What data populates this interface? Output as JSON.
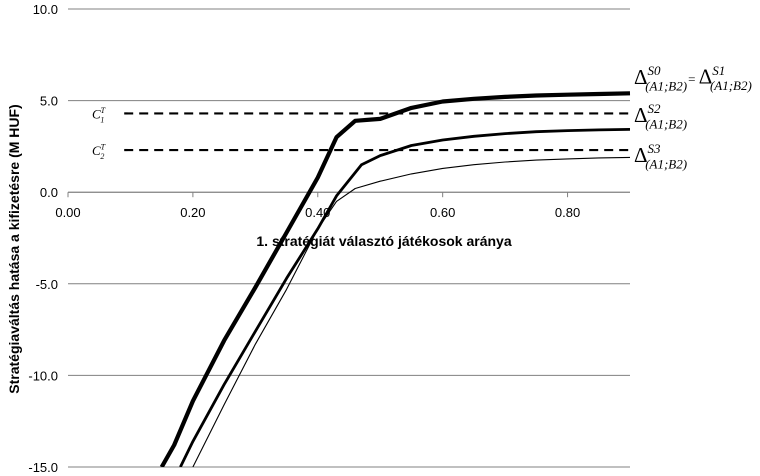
{
  "chart_data": {
    "type": "line",
    "xlabel": "1. stratégiát választó játékosok aránya",
    "ylabel": "Stratégiaváltás hatása a kifizetésre (M HUF)",
    "xlim": [
      0,
      0.9
    ],
    "ylim": [
      -15,
      10
    ],
    "x_ticks": [
      "0.00",
      "0.20",
      "0.40",
      "0.60",
      "0.80"
    ],
    "y_ticks": [
      "10.0",
      "5.0",
      "0.0",
      "-5.0",
      "-10.0",
      "-15.0"
    ],
    "grid": "horizontal",
    "series": [
      {
        "label": {
          "base": "Δ",
          "sup": "S0",
          "sub": "(A1;B2)",
          "eq": "= ",
          "base2": "Δ",
          "sup2": "S1",
          "sub2": "(A1;B2)"
        },
        "stroke": "thick",
        "x": [
          0.15,
          0.17,
          0.2,
          0.25,
          0.3,
          0.35,
          0.4,
          0.43,
          0.46,
          0.5,
          0.55,
          0.6,
          0.65,
          0.7,
          0.75,
          0.8,
          0.85,
          0.9
        ],
        "y": [
          -15,
          -13.8,
          -11.4,
          -8.1,
          -5.2,
          -2.2,
          0.8,
          3.0,
          3.9,
          4.0,
          4.6,
          4.95,
          5.1,
          5.2,
          5.28,
          5.32,
          5.36,
          5.4
        ]
      },
      {
        "label": {
          "base": "Δ",
          "sup": "S2",
          "sub": "(A1;B2)"
        },
        "stroke": "medium",
        "x": [
          0.18,
          0.2,
          0.25,
          0.3,
          0.35,
          0.4,
          0.43,
          0.47,
          0.5,
          0.55,
          0.6,
          0.65,
          0.7,
          0.75,
          0.8,
          0.85,
          0.9
        ],
        "y": [
          -15,
          -13.6,
          -10.5,
          -7.6,
          -4.7,
          -2.0,
          -0.2,
          1.5,
          2.0,
          2.55,
          2.85,
          3.05,
          3.2,
          3.3,
          3.36,
          3.4,
          3.43
        ]
      },
      {
        "label": {
          "base": "Δ",
          "sup": "S3",
          "sub": "(A1;B2)"
        },
        "stroke": "thin",
        "x": [
          0.2,
          0.25,
          0.3,
          0.35,
          0.4,
          0.43,
          0.46,
          0.5,
          0.55,
          0.6,
          0.65,
          0.7,
          0.75,
          0.8,
          0.85,
          0.9
        ],
        "y": [
          -15,
          -11.6,
          -8.3,
          -5.3,
          -2.0,
          -0.5,
          0.2,
          0.6,
          1.0,
          1.3,
          1.5,
          1.65,
          1.75,
          1.82,
          1.87,
          1.9
        ]
      }
    ],
    "reference_lines": [
      {
        "label": {
          "base": "C",
          "sup": "T",
          "sub": "1"
        },
        "y": 4.3,
        "x_start": 0.09,
        "x_end": 0.9
      },
      {
        "label": {
          "base": "C",
          "sup": "T",
          "sub": "2"
        },
        "y": 2.3,
        "x_start": 0.09,
        "x_end": 0.9
      }
    ]
  }
}
